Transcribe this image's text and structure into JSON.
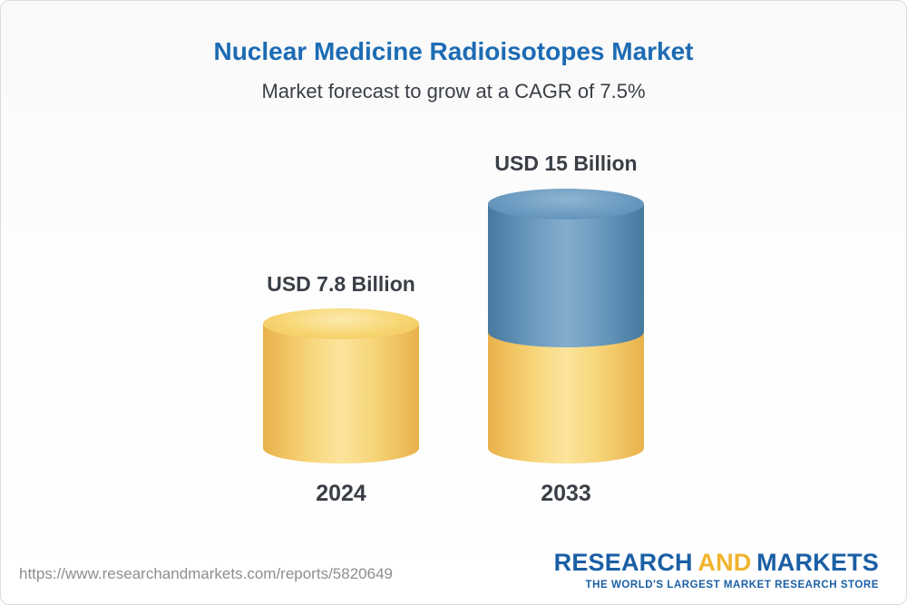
{
  "header": {
    "title": "Nuclear Medicine Radioisotopes Market",
    "subtitle": "Market forecast to grow at a CAGR of 7.5%"
  },
  "chart_data": {
    "type": "bar",
    "style": "3d-cylinder",
    "title": "Nuclear Medicine Radioisotopes Market",
    "subtitle": "Market forecast to grow at a CAGR of 7.5%",
    "categories": [
      "2024",
      "2033"
    ],
    "values": [
      7.8,
      15
    ],
    "unit": "USD Billion",
    "value_labels": [
      "USD 7.8 Billion",
      "USD 15 Billion"
    ],
    "cagr_percent": 7.5,
    "ylim": [
      0,
      16
    ],
    "grid": false,
    "legend": "none",
    "bar_colors": [
      "#f6d26e",
      "#6296bc"
    ]
  },
  "bars": [
    {
      "year": "2024",
      "value_label": "USD 7.8 Billion",
      "color": "#f6d26e"
    },
    {
      "year": "2033",
      "value_label": "USD 15 Billion",
      "top_color": "#6296bc",
      "bottom_color": "#f6d26e"
    }
  ],
  "footer": {
    "url": "https://www.researchandmarkets.com/reports/5820649",
    "logo_research": "RESEARCH",
    "logo_and": "AND",
    "logo_markets": "MARKETS",
    "logo_tagline": "THE WORLD'S LARGEST MARKET RESEARCH STORE"
  },
  "colors": {
    "title_blue": "#1d6bb4",
    "text_dark": "#3a3f46",
    "url_gray": "#8e8e8e",
    "logo_blue": "#1a5fa5",
    "logo_gold": "#f1b42e"
  }
}
